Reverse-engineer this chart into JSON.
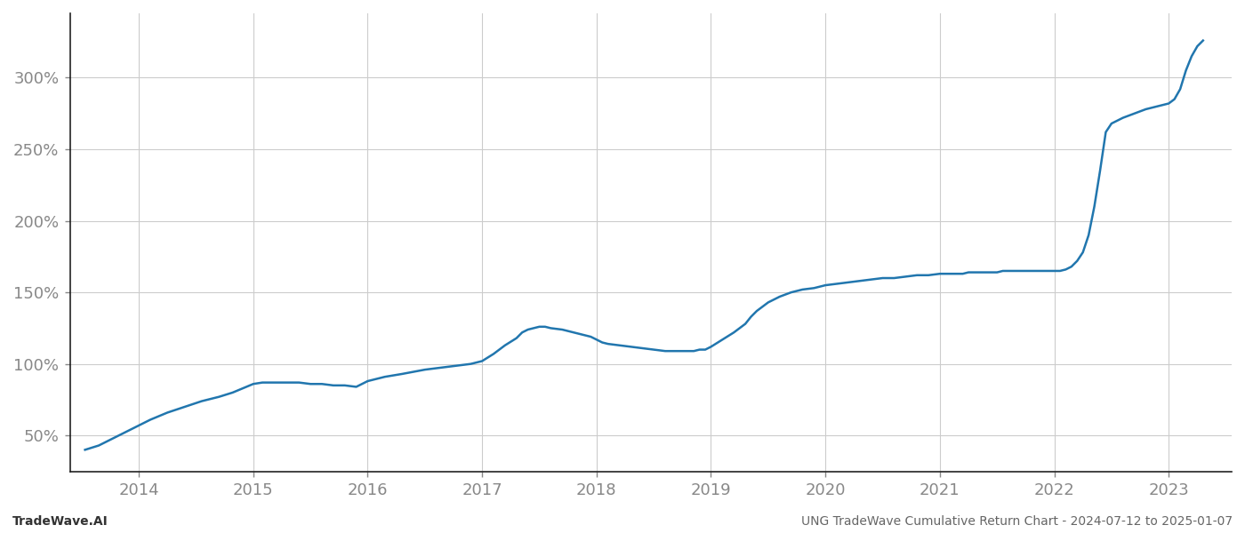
{
  "footer_left": "TradeWave.AI",
  "footer_right": "UNG TradeWave Cumulative Return Chart - 2024-07-12 to 2025-01-07",
  "line_color": "#2176ae",
  "background_color": "#ffffff",
  "grid_color": "#cccccc",
  "x_years": [
    2014,
    2015,
    2016,
    2017,
    2018,
    2019,
    2020,
    2021,
    2022,
    2023
  ],
  "data_x": [
    2013.53,
    2013.65,
    2013.8,
    2013.95,
    2014.1,
    2014.25,
    2014.4,
    2014.55,
    2014.7,
    2014.82,
    2015.0,
    2015.08,
    2015.15,
    2015.22,
    2015.3,
    2015.4,
    2015.5,
    2015.6,
    2015.7,
    2015.8,
    2015.9,
    2016.0,
    2016.15,
    2016.3,
    2016.5,
    2016.7,
    2016.9,
    2017.0,
    2017.1,
    2017.2,
    2017.3,
    2017.35,
    2017.4,
    2017.5,
    2017.55,
    2017.6,
    2017.7,
    2017.75,
    2017.8,
    2017.85,
    2017.9,
    2017.95,
    2018.0,
    2018.05,
    2018.1,
    2018.2,
    2018.3,
    2018.4,
    2018.5,
    2018.6,
    2018.7,
    2018.8,
    2018.85,
    2018.9,
    2018.95,
    2019.0,
    2019.1,
    2019.2,
    2019.3,
    2019.35,
    2019.4,
    2019.45,
    2019.5,
    2019.6,
    2019.7,
    2019.8,
    2019.9,
    2020.0,
    2020.1,
    2020.2,
    2020.3,
    2020.4,
    2020.5,
    2020.6,
    2020.7,
    2020.8,
    2020.9,
    2021.0,
    2021.1,
    2021.15,
    2021.2,
    2021.25,
    2021.3,
    2021.35,
    2021.4,
    2021.45,
    2021.5,
    2021.55,
    2021.6,
    2021.65,
    2021.7,
    2021.75,
    2021.8,
    2021.85,
    2021.9,
    2021.95,
    2022.0,
    2022.05,
    2022.1,
    2022.15,
    2022.2,
    2022.25,
    2022.3,
    2022.35,
    2022.4,
    2022.45,
    2022.5,
    2022.6,
    2022.7,
    2022.8,
    2022.9,
    2022.95,
    2023.0,
    2023.05,
    2023.1,
    2023.15,
    2023.2,
    2023.25,
    2023.3
  ],
  "data_y": [
    40,
    43,
    49,
    55,
    61,
    66,
    70,
    74,
    77,
    80,
    86,
    87,
    87,
    87,
    87,
    87,
    86,
    86,
    85,
    85,
    84,
    88,
    91,
    93,
    96,
    98,
    100,
    102,
    107,
    113,
    118,
    122,
    124,
    126,
    126,
    125,
    124,
    123,
    122,
    121,
    120,
    119,
    117,
    115,
    114,
    113,
    112,
    111,
    110,
    109,
    109,
    109,
    109,
    110,
    110,
    112,
    117,
    122,
    128,
    133,
    137,
    140,
    143,
    147,
    150,
    152,
    153,
    155,
    156,
    157,
    158,
    159,
    160,
    160,
    161,
    162,
    162,
    163,
    163,
    163,
    163,
    164,
    164,
    164,
    164,
    164,
    164,
    165,
    165,
    165,
    165,
    165,
    165,
    165,
    165,
    165,
    165,
    165,
    166,
    168,
    172,
    178,
    190,
    210,
    235,
    262,
    268,
    272,
    275,
    278,
    280,
    281,
    282,
    285,
    292,
    305,
    315,
    322,
    326
  ],
  "ylim": [
    25,
    345
  ],
  "xlim": [
    2013.4,
    2023.55
  ],
  "yticks": [
    50,
    100,
    150,
    200,
    250,
    300
  ],
  "ytick_labels": [
    "50%",
    "100%",
    "150%",
    "200%",
    "250%",
    "300%"
  ],
  "footer_fontsize": 10,
  "tick_fontsize": 13,
  "line_width": 1.8,
  "left_spine_color": "#222222",
  "bottom_spine_color": "#222222"
}
